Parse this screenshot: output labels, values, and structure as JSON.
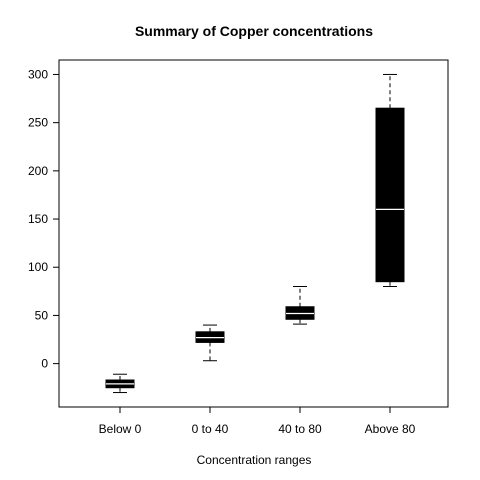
{
  "chart_data": {
    "type": "boxplot",
    "title": "Summary of Copper concentrations",
    "xlabel": "Concentration ranges",
    "ylabel": "",
    "ylim": [
      -45,
      315
    ],
    "y_ticks": [
      0,
      50,
      100,
      150,
      200,
      250,
      300
    ],
    "grid": false,
    "legend": "none",
    "colors": {
      "box": "#000000",
      "median": "#ffffff",
      "whisker": "#000000"
    },
    "categories": [
      "Below 0",
      "0 to 40",
      "40 to 80",
      "Above 80"
    ],
    "boxes": [
      {
        "category": "Below 0",
        "min": -30,
        "q1": -25,
        "median": -21,
        "q3": -17,
        "max": -11
      },
      {
        "category": "0 to 40",
        "min": 3,
        "q1": 22,
        "median": 27,
        "q3": 33,
        "max": 40
      },
      {
        "category": "40 to 80",
        "min": 41,
        "q1": 46,
        "median": 52,
        "q3": 59,
        "max": 80
      },
      {
        "category": "Above 80",
        "min": 80,
        "q1": 85,
        "median": 160,
        "q3": 265,
        "max": 300
      }
    ]
  }
}
